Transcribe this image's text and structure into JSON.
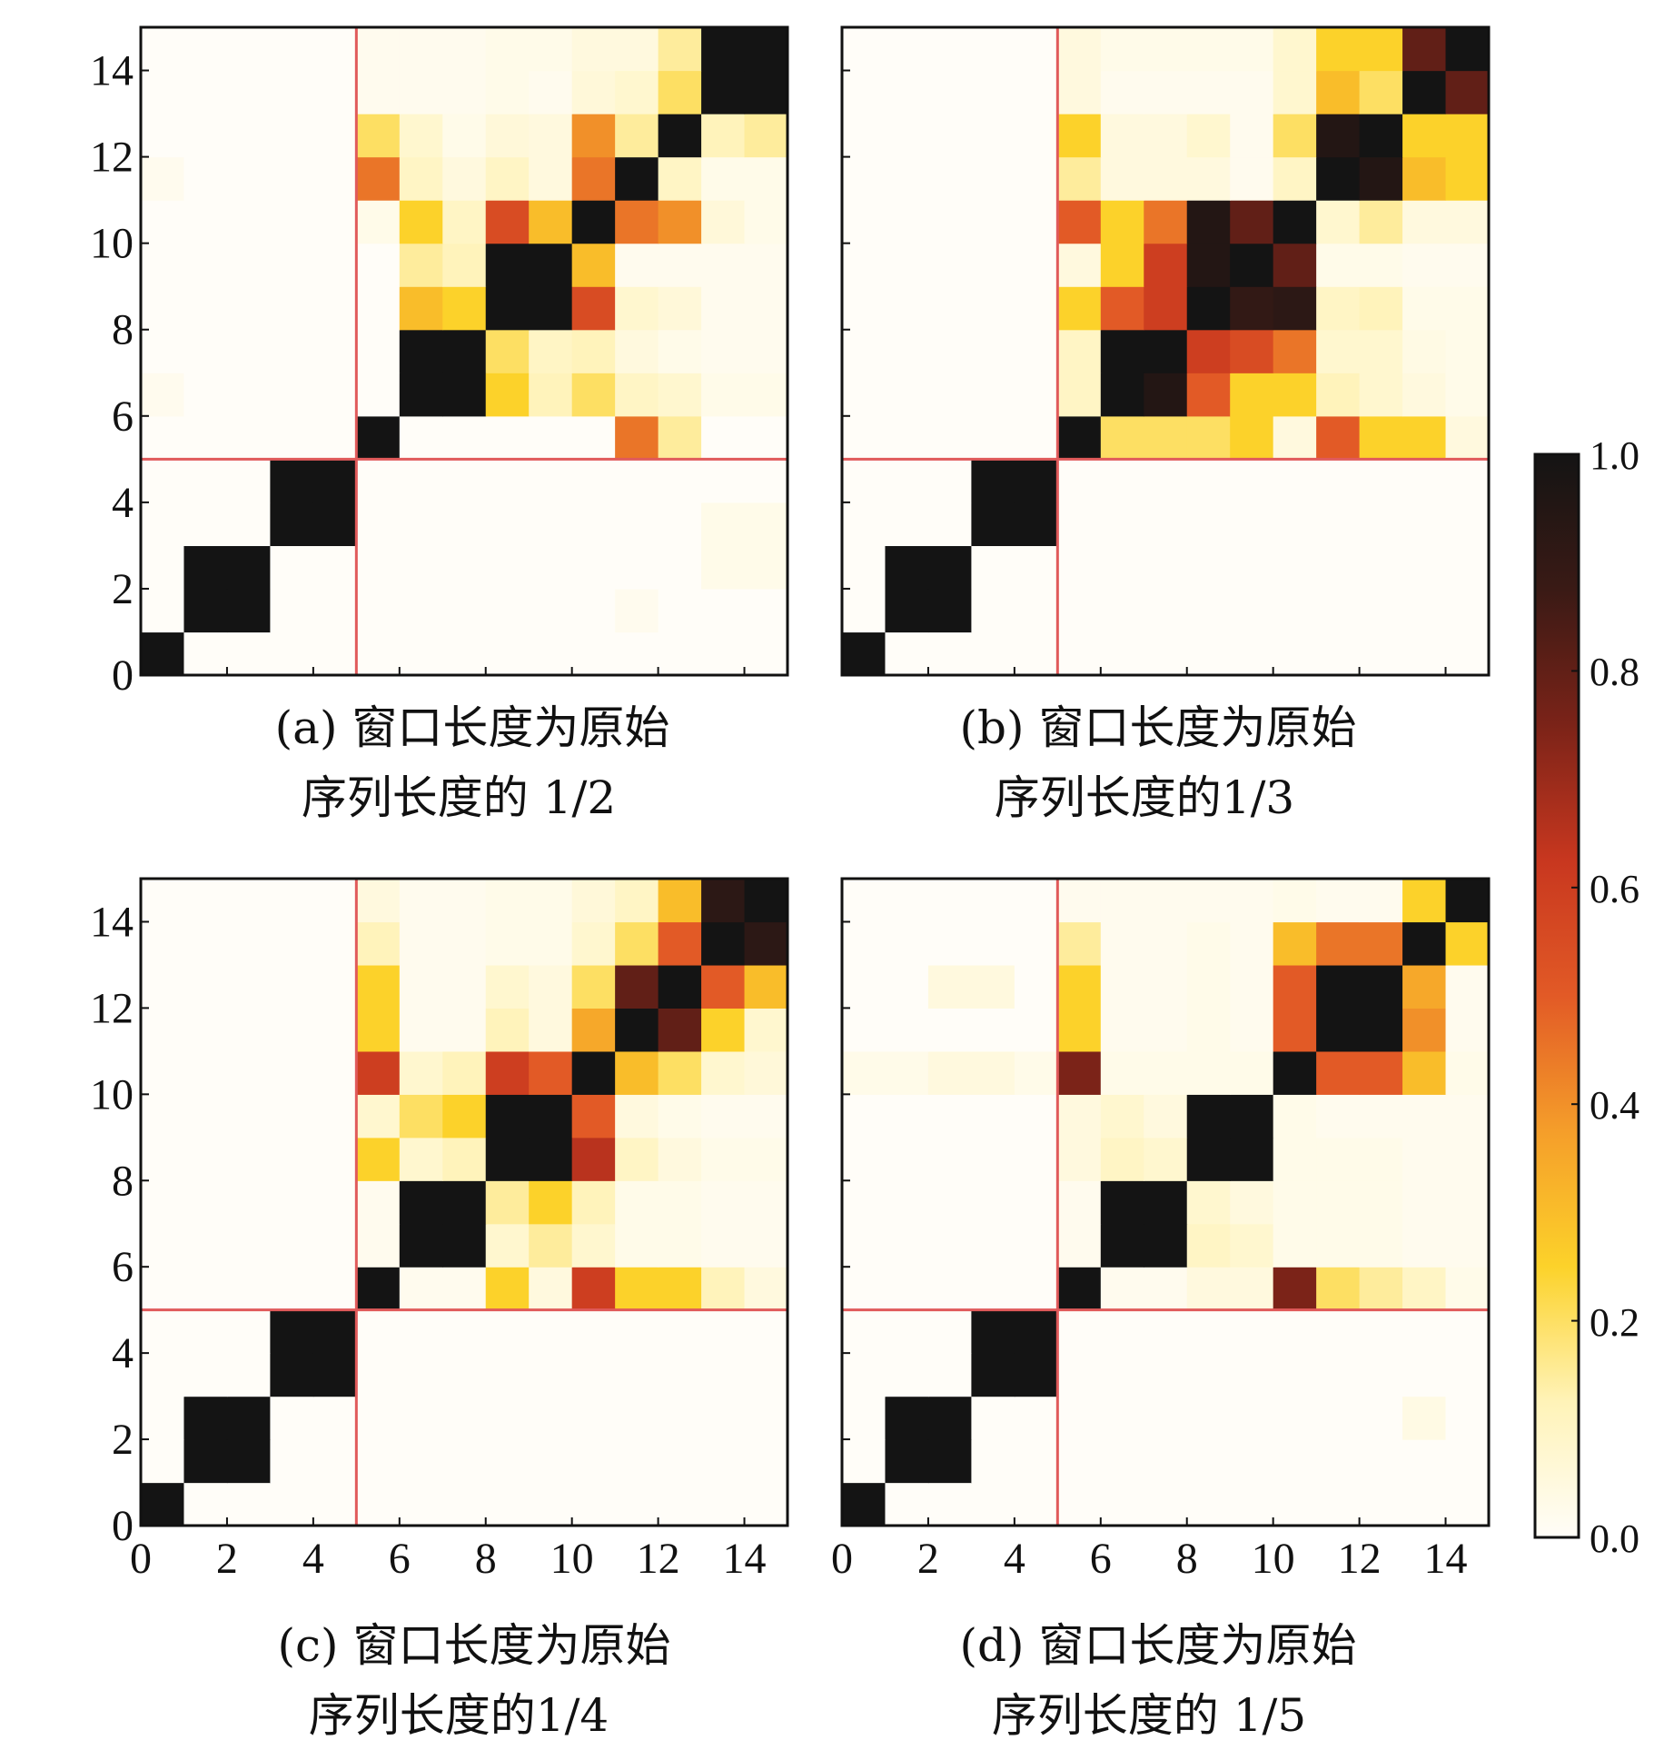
{
  "chart_data": [
    {
      "type": "heatmap",
      "panel": "a",
      "caption_lines": [
        "(a) 窗口长度为原始",
        "序列长度的 1/2"
      ],
      "n": 15,
      "xlim": [
        0,
        15
      ],
      "ylim": [
        0,
        15
      ],
      "x_ticks": [
        0,
        2,
        4,
        6,
        8,
        10,
        12,
        14
      ],
      "y_ticks": [
        0,
        2,
        4,
        6,
        8,
        10,
        12,
        14
      ],
      "x_ticks_labeled": false,
      "y_ticks_labeled": true,
      "divider_at": 5,
      "rows_bottom_to_top": [
        [
          1,
          0,
          0,
          0,
          0,
          0,
          0,
          0,
          0,
          0,
          0,
          0,
          0,
          0,
          0
        ],
        [
          0,
          1,
          1,
          0,
          0,
          0,
          0,
          0,
          0,
          0,
          0,
          0.02,
          0,
          0,
          0
        ],
        [
          0,
          1,
          1,
          0,
          0,
          0,
          0,
          0,
          0,
          0,
          0,
          0,
          0,
          0.03,
          0.03
        ],
        [
          0,
          0,
          0,
          1,
          1,
          0,
          0,
          0,
          0,
          0,
          0,
          0,
          0,
          0.03,
          0.03
        ],
        [
          0,
          0,
          0,
          1,
          1,
          0,
          0,
          0,
          0,
          0,
          0,
          0,
          0,
          0,
          0
        ],
        [
          0,
          0,
          0,
          0,
          0,
          1,
          0,
          0,
          0,
          0,
          0,
          0.45,
          0.15,
          0,
          0
        ],
        [
          0.02,
          0,
          0,
          0,
          0,
          0,
          1,
          1,
          0.25,
          0.12,
          0.2,
          0.1,
          0.08,
          0.03,
          0.03
        ],
        [
          0,
          0,
          0,
          0,
          0,
          0,
          1,
          1,
          0.2,
          0.1,
          0.12,
          0.05,
          0.03,
          0.02,
          0.02
        ],
        [
          0,
          0,
          0,
          0,
          0,
          0,
          0.3,
          0.25,
          1,
          1,
          0.55,
          0.08,
          0.06,
          0.02,
          0.02
        ],
        [
          0,
          0,
          0,
          0,
          0,
          0,
          0.15,
          0.12,
          1,
          1,
          0.3,
          0.02,
          0.02,
          0.02,
          0.02
        ],
        [
          0,
          0,
          0,
          0,
          0,
          0.03,
          0.25,
          0.1,
          0.55,
          0.3,
          1,
          0.45,
          0.4,
          0.06,
          0.03
        ],
        [
          0.02,
          0,
          0,
          0,
          0,
          0.45,
          0.1,
          0.05,
          0.1,
          0.05,
          0.45,
          1,
          0.1,
          0.03,
          0.03
        ],
        [
          0,
          0,
          0,
          0,
          0,
          0.2,
          0.08,
          0.03,
          0.06,
          0.05,
          0.4,
          0.15,
          1,
          0.12,
          0.15
        ],
        [
          0,
          0,
          0,
          0,
          0,
          0.02,
          0.02,
          0.02,
          0.03,
          0.02,
          0.06,
          0.08,
          0.2,
          1,
          1
        ],
        [
          0,
          0,
          0,
          0,
          0,
          0.02,
          0.02,
          0.02,
          0.03,
          0.03,
          0.05,
          0.05,
          0.15,
          1,
          1
        ]
      ]
    },
    {
      "type": "heatmap",
      "panel": "b",
      "caption_lines": [
        "(b) 窗口长度为原始",
        "序列长度的1/3"
      ],
      "n": 15,
      "xlim": [
        0,
        15
      ],
      "ylim": [
        0,
        15
      ],
      "x_ticks": [
        0,
        2,
        4,
        6,
        8,
        10,
        12,
        14
      ],
      "y_ticks": [
        0,
        2,
        4,
        6,
        8,
        10,
        12,
        14
      ],
      "x_ticks_labeled": false,
      "y_ticks_labeled": false,
      "divider_at": 5,
      "rows_bottom_to_top": [
        [
          1,
          0,
          0,
          0,
          0,
          0,
          0,
          0,
          0,
          0,
          0,
          0,
          0,
          0,
          0
        ],
        [
          0,
          1,
          1,
          0,
          0,
          0,
          0,
          0,
          0,
          0,
          0,
          0,
          0,
          0,
          0
        ],
        [
          0,
          1,
          1,
          0,
          0,
          0,
          0,
          0,
          0,
          0,
          0,
          0,
          0,
          0,
          0
        ],
        [
          0,
          0,
          0,
          1,
          1,
          0,
          0,
          0,
          0,
          0,
          0,
          0,
          0,
          0,
          0
        ],
        [
          0,
          0,
          0,
          1,
          1,
          0,
          0,
          0,
          0,
          0,
          0,
          0,
          0,
          0,
          0
        ],
        [
          0,
          0,
          0,
          0,
          0,
          1,
          0.2,
          0.2,
          0.2,
          0.25,
          0.05,
          0.5,
          0.25,
          0.25,
          0.05
        ],
        [
          0,
          0,
          0,
          0,
          0,
          0.1,
          1,
          0.95,
          0.5,
          0.25,
          0.25,
          0.12,
          0.08,
          0.05,
          0.03
        ],
        [
          0,
          0,
          0,
          0,
          0,
          0.1,
          1,
          1,
          0.6,
          0.55,
          0.45,
          0.08,
          0.08,
          0.04,
          0.03
        ],
        [
          0,
          0,
          0,
          0,
          0,
          0.25,
          0.5,
          0.6,
          1,
          0.9,
          0.92,
          0.1,
          0.12,
          0.03,
          0.03
        ],
        [
          0,
          0,
          0,
          0,
          0,
          0.05,
          0.25,
          0.6,
          0.95,
          1,
          0.8,
          0.03,
          0.03,
          0.02,
          0.02
        ],
        [
          0,
          0,
          0,
          0,
          0,
          0.5,
          0.25,
          0.45,
          0.95,
          0.8,
          1,
          0.08,
          0.15,
          0.05,
          0.05
        ],
        [
          0,
          0,
          0,
          0,
          0,
          0.15,
          0.05,
          0.05,
          0.05,
          0.02,
          0.1,
          1,
          0.95,
          0.3,
          0.25
        ],
        [
          0,
          0,
          0,
          0,
          0,
          0.25,
          0.05,
          0.05,
          0.08,
          0.02,
          0.2,
          0.95,
          1,
          0.25,
          0.25
        ],
        [
          0,
          0,
          0,
          0,
          0,
          0.05,
          0.02,
          0.02,
          0.02,
          0.02,
          0.08,
          0.3,
          0.2,
          1,
          0.8
        ],
        [
          0,
          0,
          0,
          0,
          0,
          0.05,
          0.03,
          0.03,
          0.03,
          0.03,
          0.08,
          0.25,
          0.25,
          0.8,
          1
        ]
      ]
    },
    {
      "type": "heatmap",
      "panel": "c",
      "caption_lines": [
        "(c) 窗口长度为原始",
        "序列长度的1/4"
      ],
      "n": 15,
      "xlim": [
        0,
        15
      ],
      "ylim": [
        0,
        15
      ],
      "x_ticks": [
        0,
        2,
        4,
        6,
        8,
        10,
        12,
        14
      ],
      "y_ticks": [
        0,
        2,
        4,
        6,
        8,
        10,
        12,
        14
      ],
      "x_ticks_labeled": true,
      "y_ticks_labeled": true,
      "divider_at": 5,
      "rows_bottom_to_top": [
        [
          1,
          0,
          0,
          0,
          0,
          0,
          0,
          0,
          0,
          0,
          0,
          0,
          0,
          0,
          0
        ],
        [
          0,
          1,
          1,
          0,
          0,
          0,
          0,
          0,
          0,
          0,
          0,
          0,
          0,
          0,
          0
        ],
        [
          0,
          1,
          1,
          0,
          0,
          0,
          0,
          0,
          0,
          0,
          0,
          0,
          0,
          0,
          0
        ],
        [
          0,
          0,
          0,
          1,
          1,
          0,
          0,
          0,
          0,
          0,
          0,
          0,
          0,
          0,
          0
        ],
        [
          0,
          0,
          0,
          1,
          1,
          0,
          0,
          0,
          0,
          0,
          0,
          0,
          0,
          0,
          0
        ],
        [
          0,
          0,
          0,
          0,
          0,
          1,
          0.02,
          0.02,
          0.25,
          0.05,
          0.6,
          0.25,
          0.25,
          0.12,
          0.05
        ],
        [
          0,
          0,
          0,
          0,
          0,
          0.02,
          1,
          1,
          0.08,
          0.15,
          0.08,
          0.03,
          0.03,
          0.02,
          0.02
        ],
        [
          0,
          0,
          0,
          0,
          0,
          0.02,
          1,
          1,
          0.15,
          0.25,
          0.12,
          0.03,
          0.03,
          0.02,
          0.02
        ],
        [
          0,
          0,
          0,
          0,
          0,
          0.25,
          0.08,
          0.12,
          1,
          1,
          0.65,
          0.1,
          0.05,
          0.03,
          0.03
        ],
        [
          0,
          0,
          0,
          0,
          0,
          0.08,
          0.2,
          0.25,
          1,
          1,
          0.5,
          0.05,
          0.03,
          0.02,
          0.02
        ],
        [
          0,
          0,
          0,
          0,
          0,
          0.6,
          0.08,
          0.12,
          0.6,
          0.5,
          1,
          0.3,
          0.2,
          0.08,
          0.06
        ],
        [
          0,
          0,
          0,
          0,
          0,
          0.25,
          0.02,
          0.02,
          0.12,
          0.05,
          0.35,
          1,
          0.8,
          0.25,
          0.08
        ],
        [
          0,
          0,
          0,
          0,
          0,
          0.25,
          0.02,
          0.02,
          0.08,
          0.05,
          0.2,
          0.8,
          1,
          0.5,
          0.3
        ],
        [
          0,
          0,
          0,
          0,
          0,
          0.12,
          0.02,
          0.02,
          0.03,
          0.03,
          0.08,
          0.2,
          0.5,
          1,
          0.92
        ],
        [
          0,
          0,
          0,
          0,
          0,
          0.05,
          0.02,
          0.02,
          0.03,
          0.03,
          0.06,
          0.1,
          0.3,
          0.92,
          1
        ]
      ]
    },
    {
      "type": "heatmap",
      "panel": "d",
      "caption_lines": [
        "(d) 窗口长度为原始",
        "序列长度的 1/5"
      ],
      "n": 15,
      "xlim": [
        0,
        15
      ],
      "ylim": [
        0,
        15
      ],
      "x_ticks": [
        0,
        2,
        4,
        6,
        8,
        10,
        12,
        14
      ],
      "y_ticks": [
        0,
        2,
        4,
        6,
        8,
        10,
        12,
        14
      ],
      "x_ticks_labeled": true,
      "y_ticks_labeled": false,
      "divider_at": 5,
      "rows_bottom_to_top": [
        [
          1,
          0,
          0,
          0,
          0,
          0,
          0,
          0,
          0,
          0,
          0,
          0,
          0,
          0,
          0
        ],
        [
          0,
          1,
          1,
          0,
          0,
          0,
          0,
          0,
          0,
          0,
          0,
          0,
          0,
          0,
          0
        ],
        [
          0,
          1,
          1,
          0,
          0,
          0,
          0,
          0,
          0,
          0,
          0,
          0,
          0,
          0.04,
          0
        ],
        [
          0,
          0,
          0,
          1,
          1,
          0,
          0,
          0,
          0,
          0,
          0,
          0,
          0,
          0,
          0
        ],
        [
          0,
          0,
          0,
          1,
          1,
          0,
          0,
          0,
          0,
          0,
          0,
          0,
          0,
          0,
          0
        ],
        [
          0,
          0,
          0,
          0,
          0,
          1,
          0.02,
          0.02,
          0.05,
          0.05,
          0.75,
          0.2,
          0.15,
          0.1,
          0.03
        ],
        [
          0,
          0,
          0,
          0,
          0,
          0.02,
          1,
          1,
          0.1,
          0.08,
          0.03,
          0.03,
          0.03,
          0.02,
          0.02
        ],
        [
          0,
          0,
          0,
          0,
          0,
          0.02,
          1,
          1,
          0.08,
          0.05,
          0.03,
          0.03,
          0.03,
          0.02,
          0.02
        ],
        [
          0,
          0,
          0,
          0,
          0,
          0.05,
          0.1,
          0.08,
          1,
          1,
          0.03,
          0.03,
          0.03,
          0.02,
          0.02
        ],
        [
          0,
          0,
          0,
          0,
          0,
          0.05,
          0.08,
          0.05,
          1,
          1,
          0.03,
          0.02,
          0.02,
          0.02,
          0.02
        ],
        [
          0.03,
          0.03,
          0.05,
          0.05,
          0.03,
          0.75,
          0.03,
          0.03,
          0.03,
          0.03,
          1,
          0.5,
          0.5,
          0.3,
          0.03
        ],
        [
          0,
          0,
          0,
          0,
          0,
          0.25,
          0.02,
          0.02,
          0.03,
          0.02,
          0.5,
          1,
          1,
          0.4,
          0.02
        ],
        [
          0,
          0,
          0.05,
          0.05,
          0,
          0.25,
          0.02,
          0.02,
          0.03,
          0.02,
          0.5,
          1,
          1,
          0.35,
          0.02
        ],
        [
          0,
          0,
          0,
          0,
          0,
          0.15,
          0.02,
          0.02,
          0.03,
          0.02,
          0.3,
          0.45,
          0.45,
          1,
          0.25
        ],
        [
          0,
          0,
          0,
          0,
          0,
          0.02,
          0.02,
          0.02,
          0.02,
          0.02,
          0.03,
          0.02,
          0.02,
          0.25,
          1
        ]
      ]
    }
  ],
  "colorbar": {
    "range": [
      0.0,
      1.0
    ],
    "ticks": [
      "0.0",
      "0.2",
      "0.4",
      "0.6",
      "0.8",
      "1.0"
    ],
    "colormap": "white-yellow-orange-red-black",
    "stops": [
      "#fffdf8",
      "#fff3b8",
      "#fcd22a",
      "#f59e2a",
      "#e25a26",
      "#c8371f",
      "#7b2318",
      "#3a1a15",
      "#141414"
    ],
    "divider_color": "#e05a5a"
  }
}
